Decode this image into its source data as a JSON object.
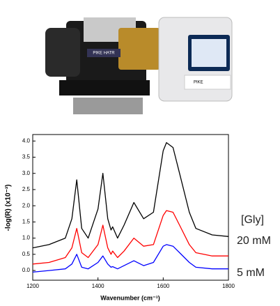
{
  "photo_labels": [
    "PIKE HATR",
    "PIKE"
  ],
  "chart_data": {
    "type": "line",
    "xlabel": "Wavenumber (cm⁻¹)",
    "ylabel": "-log(R) (x10⁻³)",
    "annotations": [
      "[Gly]",
      "20 mM",
      "5 mM"
    ],
    "x": [
      1200,
      1250,
      1300,
      1320,
      1335,
      1350,
      1370,
      1400,
      1415,
      1430,
      1440,
      1445,
      1460,
      1480,
      1510,
      1540,
      1570,
      1600,
      1610,
      1630,
      1650,
      1680,
      1700,
      1750,
      1800
    ],
    "series": [
      {
        "color": "#000000",
        "values": [
          0.7,
          0.8,
          1.0,
          1.6,
          2.8,
          1.3,
          1.0,
          1.9,
          3.0,
          1.6,
          1.25,
          1.35,
          1.0,
          1.4,
          2.1,
          1.6,
          1.8,
          3.7,
          3.95,
          3.8,
          3.0,
          1.8,
          1.3,
          1.1,
          1.05
        ]
      },
      {
        "color": "#ff0000",
        "values": [
          0.2,
          0.25,
          0.4,
          0.7,
          1.3,
          0.55,
          0.4,
          0.8,
          1.4,
          0.7,
          0.5,
          0.6,
          0.4,
          0.6,
          1.0,
          0.75,
          0.8,
          1.7,
          1.85,
          1.8,
          1.4,
          0.8,
          0.55,
          0.45,
          0.45
        ]
      },
      {
        "color": "#0000ff",
        "values": [
          -0.05,
          0.0,
          0.05,
          0.2,
          0.5,
          0.1,
          0.05,
          0.25,
          0.45,
          0.2,
          0.1,
          0.12,
          0.05,
          0.15,
          0.3,
          0.15,
          0.25,
          0.75,
          0.8,
          0.75,
          0.55,
          0.25,
          0.1,
          0.05,
          0.05
        ]
      }
    ],
    "xlim": [
      1200,
      1800
    ],
    "xticks": [
      1200,
      1400,
      1600,
      1800
    ],
    "ylim": [
      -0.3,
      4.2
    ],
    "yticks": [
      {
        "value": 0,
        "label": "0.0"
      },
      {
        "value": 0.5,
        "label": "0.5"
      },
      {
        "value": 1,
        "label": "1.0"
      },
      {
        "value": 1.5,
        "label": "1.5"
      },
      {
        "value": 2,
        "label": "2.0"
      },
      {
        "value": 2.5,
        "label": "2.5"
      },
      {
        "value": 3,
        "label": "3.0"
      },
      {
        "value": 3.5,
        "label": "3.5"
      },
      {
        "value": 4,
        "label": "4.0"
      }
    ]
  }
}
